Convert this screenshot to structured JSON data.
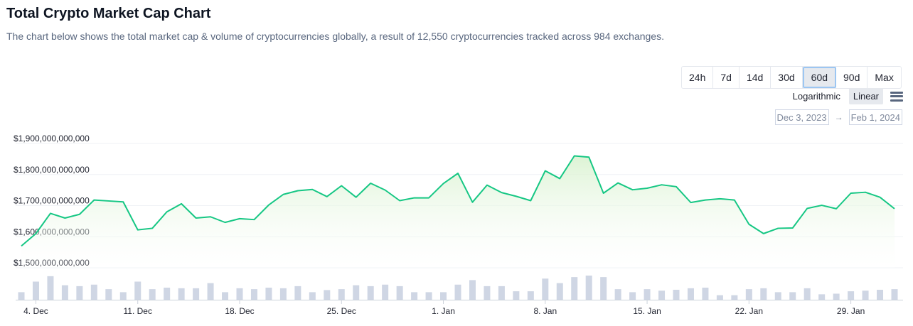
{
  "header": {
    "title": "Total Crypto Market Cap Chart",
    "subtitle": "The chart below shows the total market cap & volume of cryptocurrencies globally, a result of 12,550 cryptocurrencies tracked across 984 exchanges."
  },
  "controls": {
    "ranges": [
      "24h",
      "7d",
      "14d",
      "30d",
      "60d",
      "90d",
      "Max"
    ],
    "active_range": "60d",
    "scale_log_label": "Logarithmic",
    "scale_linear_label": "Linear",
    "active_scale": "Linear",
    "date_from": "Dec 3, 2023",
    "date_to": "Feb 1, 2024",
    "menu_icon": "hamburger-menu-icon"
  },
  "colors": {
    "line": "#16c784",
    "area_top": "#d9f2d0",
    "volume_bar": "#cfd6e4",
    "grid": "#eff2f5",
    "axis_text": "#58667e"
  },
  "chart_data": {
    "type": "area",
    "ylim": [
      1500000000000,
      1900000000000
    ],
    "yticks": [
      "$1,900,000,000,000",
      "$1,800,000,000,000",
      "$1,700,000,000,000",
      "$1,600,000,000,000",
      "$1,500,000,000,000"
    ],
    "xticks": [
      "4. Dec",
      "11. Dec",
      "18. Dec",
      "25. Dec",
      "1. Jan",
      "8. Jan",
      "15. Jan",
      "22. Jan",
      "29. Jan"
    ],
    "series": [
      {
        "values": [
          1570,
          1610,
          1675,
          1660,
          1672,
          1718,
          1715,
          1712,
          1622,
          1627,
          1680,
          1706,
          1660,
          1664,
          1646,
          1658,
          1655,
          1702,
          1736,
          1748,
          1752,
          1729,
          1764,
          1727,
          1772,
          1750,
          1716,
          1725,
          1725,
          1771,
          1804,
          1711,
          1766,
          1742,
          1730,
          1716,
          1812,
          1787,
          1860,
          1856,
          1740,
          1773,
          1751,
          1756,
          1767,
          1761,
          1710,
          1718,
          1722,
          1718,
          1640,
          1610,
          1627,
          1628,
          1691,
          1701,
          1690,
          1740,
          1743,
          1727,
          1690
        ]
      },
      {
        "name": "Volume",
        "values": [
          25,
          60,
          78,
          48,
          45,
          50,
          35,
          25,
          60,
          35,
          40,
          38,
          38,
          55,
          25,
          38,
          35,
          40,
          38,
          45,
          25,
          32,
          35,
          48,
          45,
          50,
          45,
          25,
          25,
          25,
          50,
          65,
          45,
          45,
          28,
          28,
          70,
          55,
          75,
          80,
          75,
          35,
          25,
          35,
          30,
          33,
          38,
          40,
          15,
          15,
          35,
          38,
          25,
          25,
          38,
          18,
          20,
          28,
          30,
          33,
          35
        ]
      }
    ]
  }
}
